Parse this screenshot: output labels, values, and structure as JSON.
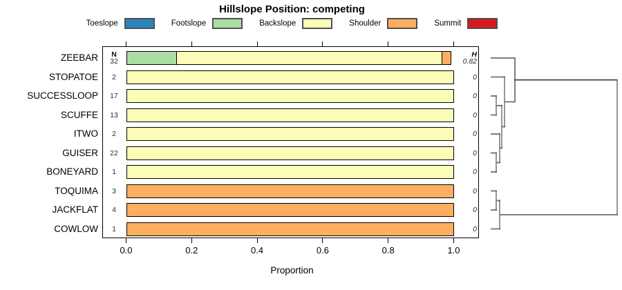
{
  "title": "Hillslope Position: competing",
  "x_axis_title": "Proportion",
  "chart_data": {
    "type": "bar",
    "orientation": "horizontal_stacked",
    "title": "Hillslope Position: competing",
    "xlabel": "Proportion",
    "xlim": [
      0,
      1
    ],
    "x_ticks": [
      0,
      0.2,
      0.4,
      0.6,
      0.8,
      1
    ],
    "x_tick_labels": [
      "0.0",
      "0.2",
      "0.4",
      "0.6",
      "0.8",
      "1.0"
    ],
    "grid": false,
    "legend_position": "top",
    "legend": [
      "Toeslope",
      "Footslope",
      "Backslope",
      "Shoulder",
      "Summit"
    ],
    "colors": {
      "Toeslope": "#2B83BA",
      "Footslope": "#ABDDA4",
      "Backslope": "#FCFCB9",
      "Shoulder": "#FDAE61",
      "Summit": "#D7191C"
    },
    "n_header": "N",
    "h_header": "H",
    "rows": [
      {
        "label": "ZEEBAR",
        "n": 32,
        "h": "0.82",
        "segments": [
          {
            "category": "Footslope",
            "value": 0.156
          },
          {
            "category": "Backslope",
            "value": 0.813
          },
          {
            "category": "Shoulder",
            "value": 0.031
          }
        ]
      },
      {
        "label": "STOPATOE",
        "n": 2,
        "h": "0",
        "segments": [
          {
            "category": "Backslope",
            "value": 1
          }
        ]
      },
      {
        "label": "SUCCESSLOOP",
        "n": 17,
        "h": "0",
        "segments": [
          {
            "category": "Backslope",
            "value": 1
          }
        ]
      },
      {
        "label": "SCUFFE",
        "n": 13,
        "h": "0",
        "segments": [
          {
            "category": "Backslope",
            "value": 1
          }
        ]
      },
      {
        "label": "ITWO",
        "n": 2,
        "h": "0",
        "segments": [
          {
            "category": "Backslope",
            "value": 1
          }
        ]
      },
      {
        "label": "GUISER",
        "n": 22,
        "h": "0",
        "segments": [
          {
            "category": "Backslope",
            "value": 1
          }
        ]
      },
      {
        "label": "BONEYARD",
        "n": 1,
        "h": "0",
        "segments": [
          {
            "category": "Backslope",
            "value": 1
          }
        ]
      },
      {
        "label": "TOQUIMA",
        "n": 3,
        "h": "0",
        "segments": [
          {
            "category": "Shoulder",
            "value": 1
          }
        ]
      },
      {
        "label": "JACKFLAT",
        "n": 4,
        "h": "0",
        "segments": [
          {
            "category": "Shoulder",
            "value": 1
          }
        ]
      },
      {
        "label": "COWLOW",
        "n": 1,
        "h": "0",
        "segments": [
          {
            "category": "Shoulder",
            "value": 1
          }
        ]
      }
    ]
  },
  "dendrogram": {
    "description": "hierarchical clustering of the 10 series; top cluster = backslope-dominated rows, bottom cluster = shoulder-dominated rows",
    "gray_color": "#7e7e7e",
    "dark_color": "#2f2f2f",
    "segments": [
      [
        711,
        84,
        745,
        84,
        "g"
      ],
      [
        711,
        111.5,
        730,
        111.5,
        "g"
      ],
      [
        711,
        139,
        718,
        139,
        "g"
      ],
      [
        711,
        166.5,
        718,
        166.5,
        "g"
      ],
      [
        711,
        194,
        723,
        194,
        "g"
      ],
      [
        711,
        221.5,
        718,
        221.5,
        "g"
      ],
      [
        711,
        249,
        718,
        249,
        "g"
      ],
      [
        711,
        276.5,
        718,
        276.5,
        "g"
      ],
      [
        711,
        304,
        718,
        304,
        "g"
      ],
      [
        711,
        331.5,
        723,
        331.5,
        "g"
      ],
      [
        718,
        139,
        718,
        166.5,
        "d"
      ],
      [
        718,
        152.8,
        726,
        152.8,
        "g"
      ],
      [
        718,
        221.5,
        718,
        249,
        "d"
      ],
      [
        718,
        235.3,
        723,
        235.3,
        "g"
      ],
      [
        723,
        194,
        723,
        235.3,
        "d"
      ],
      [
        723,
        214.6,
        726,
        214.6,
        "g"
      ],
      [
        726,
        152.8,
        726,
        214.6,
        "d"
      ],
      [
        726,
        183.7,
        730,
        183.7,
        "g"
      ],
      [
        730,
        111.5,
        730,
        183.7,
        "d"
      ],
      [
        730,
        147.6,
        745,
        147.6,
        "g"
      ],
      [
        745,
        84,
        745,
        147.6,
        "g"
      ],
      [
        745,
        115.8,
        893,
        115.8,
        "d"
      ],
      [
        718,
        276.5,
        718,
        304,
        "d"
      ],
      [
        718,
        290.3,
        723,
        290.3,
        "g"
      ],
      [
        723,
        290.3,
        723,
        331.5,
        "d"
      ],
      [
        723,
        310.9,
        893,
        310.9,
        "g"
      ],
      [
        893,
        115.8,
        893,
        310.9,
        "d"
      ]
    ]
  }
}
